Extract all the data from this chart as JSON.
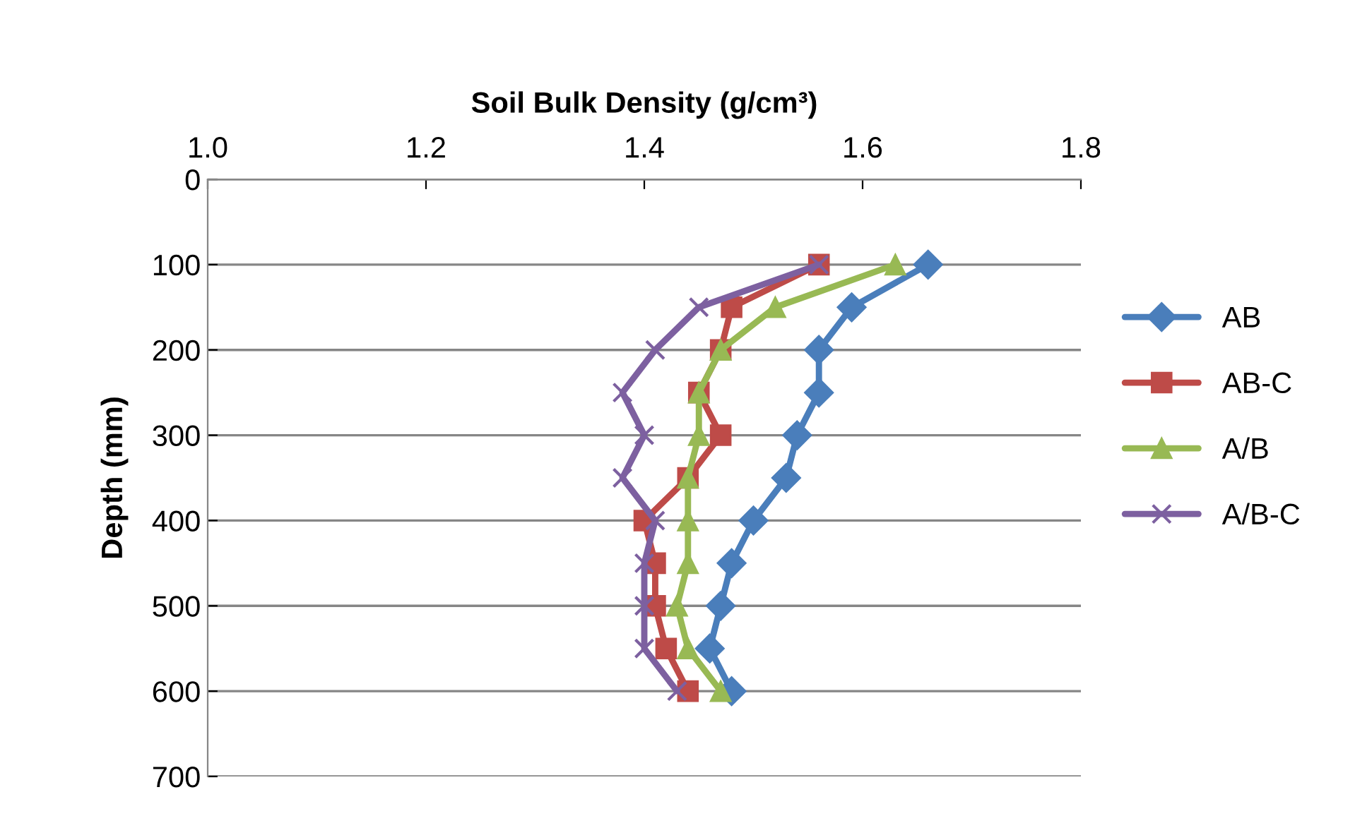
{
  "chart_data": {
    "type": "line",
    "xlabel": "Soil Bulk Density (g/cm³)",
    "ylabel": "Depth (mm)",
    "series": [
      {
        "name": "AB",
        "color": "#4a7ebb",
        "marker": "diamond",
        "x": [
          1.66,
          1.59,
          1.56,
          1.56,
          1.54,
          1.53,
          1.5,
          1.48,
          1.47,
          1.46,
          1.48
        ],
        "values": [
          100,
          150,
          200,
          250,
          300,
          350,
          400,
          450,
          500,
          550,
          600
        ]
      },
      {
        "name": "AB-C",
        "color": "#be4b48",
        "marker": "square",
        "x": [
          1.56,
          1.48,
          1.47,
          1.45,
          1.47,
          1.44,
          1.4,
          1.41,
          1.41,
          1.42,
          1.44
        ],
        "values": [
          100,
          150,
          200,
          250,
          300,
          350,
          400,
          450,
          500,
          550,
          600
        ]
      },
      {
        "name": "A/B",
        "color": "#98b954",
        "marker": "triangle",
        "x": [
          1.63,
          1.52,
          1.47,
          1.45,
          1.45,
          1.44,
          1.44,
          1.44,
          1.43,
          1.44,
          1.47
        ],
        "values": [
          100,
          150,
          200,
          250,
          300,
          350,
          400,
          450,
          500,
          550,
          600
        ]
      },
      {
        "name": "A/B-C",
        "color": "#7d60a0",
        "marker": "cross",
        "x": [
          1.56,
          1.45,
          1.41,
          1.38,
          1.4,
          1.38,
          1.41,
          1.4,
          1.4,
          1.4,
          1.43
        ],
        "values": [
          100,
          150,
          200,
          250,
          300,
          350,
          400,
          450,
          500,
          550,
          600
        ]
      }
    ],
    "xlim": [
      1.0,
      1.8
    ],
    "xticks": [
      {
        "value": 1.0,
        "label": "1.0"
      },
      1.2,
      1.4,
      1.6,
      1.8
    ],
    "ylim": [
      700,
      0
    ],
    "yticks": [
      0,
      100,
      200,
      300,
      400,
      500,
      600,
      700
    ],
    "grid": "y",
    "legend": "right",
    "line_style": "solid"
  }
}
